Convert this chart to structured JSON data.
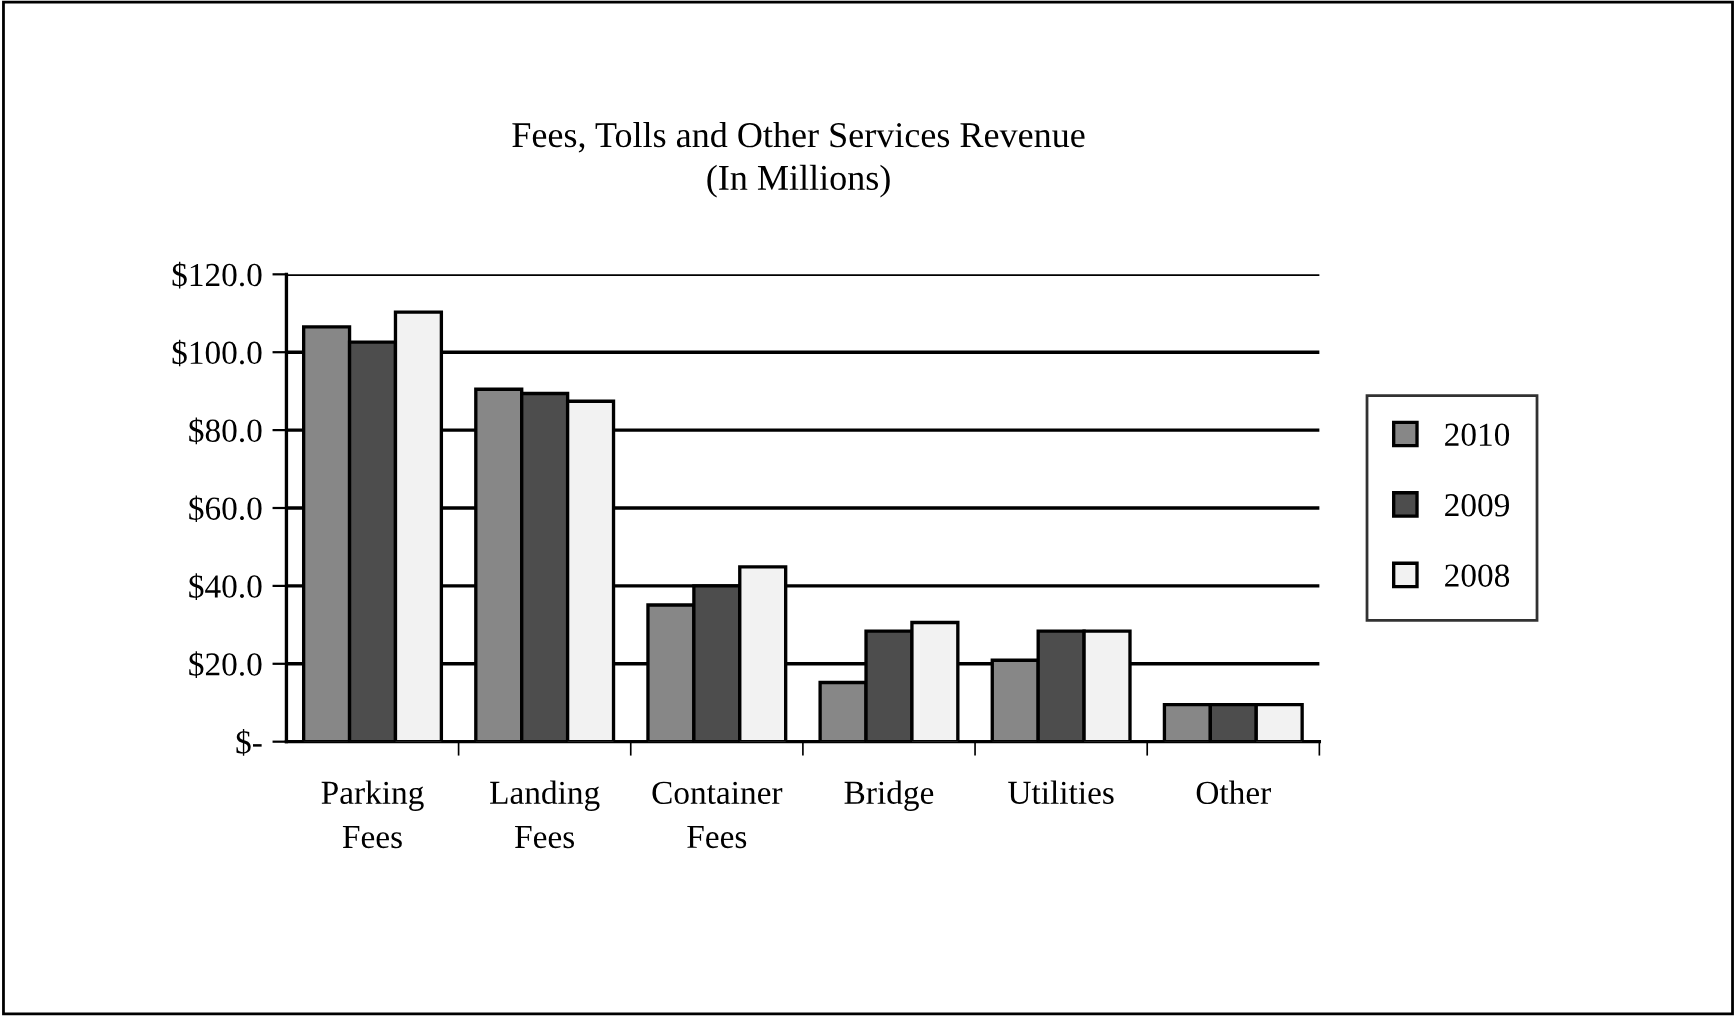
{
  "chart_data": {
    "type": "bar",
    "title": "Fees, Tolls and Other Services Revenue\n(In Millions)",
    "categories": [
      "Parking\nFees",
      "Landing\nFees",
      "Container\nFees",
      "Bridge",
      "Utilities",
      "Other"
    ],
    "series": [
      {
        "name": "2010",
        "color": "#878787",
        "values": [
          106.5,
          90.5,
          35.1,
          15.2,
          20.9,
          9.5
        ]
      },
      {
        "name": "2009",
        "color": "#4d4d4d",
        "values": [
          102.6,
          89.4,
          40.0,
          28.4,
          28.4,
          9.5
        ]
      },
      {
        "name": "2008",
        "color": "#f2f2f2",
        "values": [
          110.3,
          87.4,
          44.9,
          30.6,
          28.4,
          9.5
        ]
      }
    ],
    "ylim": [
      0,
      120
    ],
    "yticks": [
      {
        "value": 0,
        "label": "$-"
      },
      {
        "value": 20,
        "label": "$20.0"
      },
      {
        "value": 40,
        "label": "$40.0"
      },
      {
        "value": 60,
        "label": "$60.0"
      },
      {
        "value": 80,
        "label": "$80.0"
      },
      {
        "value": 100,
        "label": "$100.0"
      },
      {
        "value": 120,
        "label": "$120.0"
      }
    ],
    "grid": "y",
    "legend": "right"
  }
}
